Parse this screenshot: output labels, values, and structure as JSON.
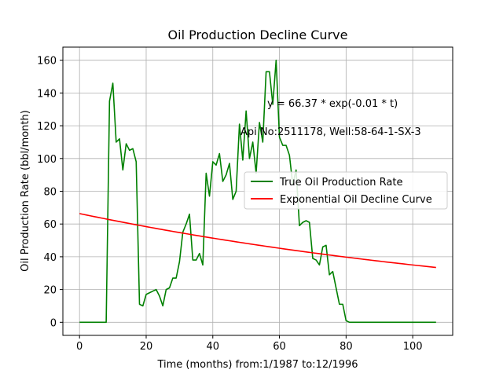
{
  "chart_data": {
    "type": "line",
    "title": "Oil Production Decline Curve",
    "xlabel": "Time (months) from:1/1987 to:12/1996",
    "ylabel": "Oil Production Rate (bbl/month)",
    "xlim": [
      -5,
      112
    ],
    "ylim": [
      -8,
      168
    ],
    "xticks": [
      0,
      20,
      40,
      60,
      80,
      100
    ],
    "yticks": [
      0,
      20,
      40,
      60,
      80,
      100,
      120,
      140,
      160
    ],
    "grid": true,
    "legend_position": "center-right",
    "annotations": [
      "y = 66.37 * exp(-0.01 * t)",
      "Api No:2511178, Well:58-64-1-SX-3"
    ],
    "series": [
      {
        "name": "True Oil Production Rate",
        "color": "#008000",
        "x": [
          0,
          1,
          2,
          3,
          4,
          5,
          6,
          7,
          8,
          9,
          10,
          11,
          12,
          13,
          14,
          15,
          16,
          17,
          18,
          19,
          20,
          21,
          22,
          23,
          24,
          25,
          26,
          27,
          28,
          29,
          30,
          31,
          32,
          33,
          34,
          35,
          36,
          37,
          38,
          39,
          40,
          41,
          42,
          43,
          44,
          45,
          46,
          47,
          48,
          49,
          50,
          51,
          52,
          53,
          54,
          55,
          56,
          57,
          58,
          59,
          60,
          61,
          62,
          63,
          64,
          65,
          66,
          67,
          68,
          69,
          70,
          71,
          72,
          73,
          74,
          75,
          76,
          77,
          78,
          79,
          80,
          81,
          82,
          83,
          84,
          85,
          86,
          87,
          88,
          89,
          90,
          91,
          92,
          93,
          94,
          95,
          96,
          97,
          98,
          99,
          100,
          101,
          102,
          103,
          104,
          105,
          106,
          107
        ],
        "y": [
          0,
          0,
          0,
          0,
          0,
          0,
          0,
          0,
          0,
          135,
          146,
          110,
          112,
          93,
          109,
          105,
          106,
          98,
          11,
          10,
          17,
          18,
          19,
          20,
          16,
          10,
          20,
          21,
          27,
          27,
          37,
          55,
          60,
          66,
          38,
          38,
          42,
          35,
          91,
          77,
          98,
          96,
          103,
          86,
          90,
          97,
          75,
          80,
          121,
          99,
          129,
          100,
          110,
          91,
          122,
          110,
          153,
          153,
          133,
          160,
          113,
          108,
          108,
          102,
          84,
          93,
          59,
          61,
          62,
          61,
          39,
          38,
          35,
          46,
          47,
          29,
          31,
          21,
          11,
          11,
          1,
          0,
          0,
          0,
          0,
          0,
          0,
          0,
          0,
          0,
          0,
          0,
          0,
          0,
          0,
          0,
          0,
          0,
          0,
          0,
          0,
          0,
          0,
          0,
          0,
          0,
          0,
          0
        ]
      },
      {
        "name": "Exponential Oil Decline Curve",
        "color": "#ff0000",
        "a": 66.37,
        "b": -0.0064,
        "x_start": 0,
        "x_end": 107
      }
    ]
  }
}
